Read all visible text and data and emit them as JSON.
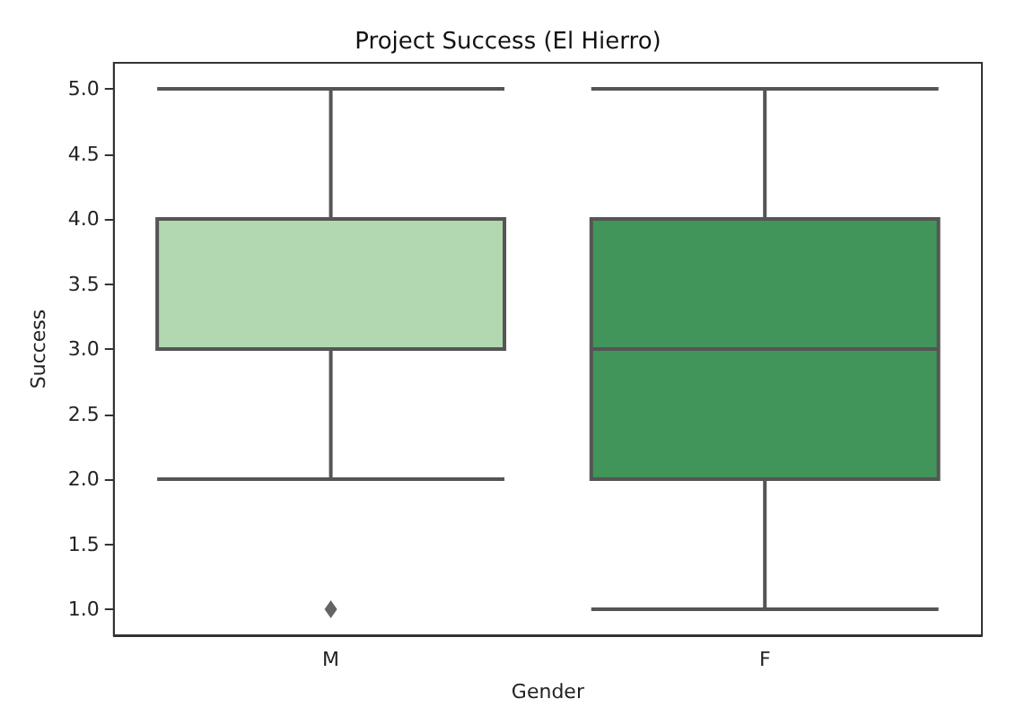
{
  "chart_data": {
    "type": "box",
    "title": "Project Success (El Hierro)",
    "xlabel": "Gender",
    "ylabel": "Success",
    "categories": [
      "M",
      "F"
    ],
    "colors": [
      "#b2d8b0",
      "#41955a"
    ],
    "boxes": [
      {
        "low": 2,
        "q1": 3,
        "median": 4,
        "q3": 4,
        "high": 5,
        "outliers": [
          1
        ]
      },
      {
        "low": 1,
        "q1": 2,
        "median": 3,
        "q3": 4,
        "high": 5
      }
    ],
    "ylim": [
      0.8,
      5.2
    ],
    "yticks": [
      {
        "value": 1,
        "label": "1.0"
      },
      {
        "value": 1.5,
        "label": "1.5"
      },
      {
        "value": 2,
        "label": "2.0"
      },
      {
        "value": 2.5,
        "label": "2.5"
      },
      {
        "value": 3,
        "label": "3.0"
      },
      {
        "value": 3.5,
        "label": "3.5"
      },
      {
        "value": 4,
        "label": "4.0"
      },
      {
        "value": 4.5,
        "label": "4.5"
      },
      {
        "value": 5,
        "label": "5.0"
      }
    ]
  }
}
